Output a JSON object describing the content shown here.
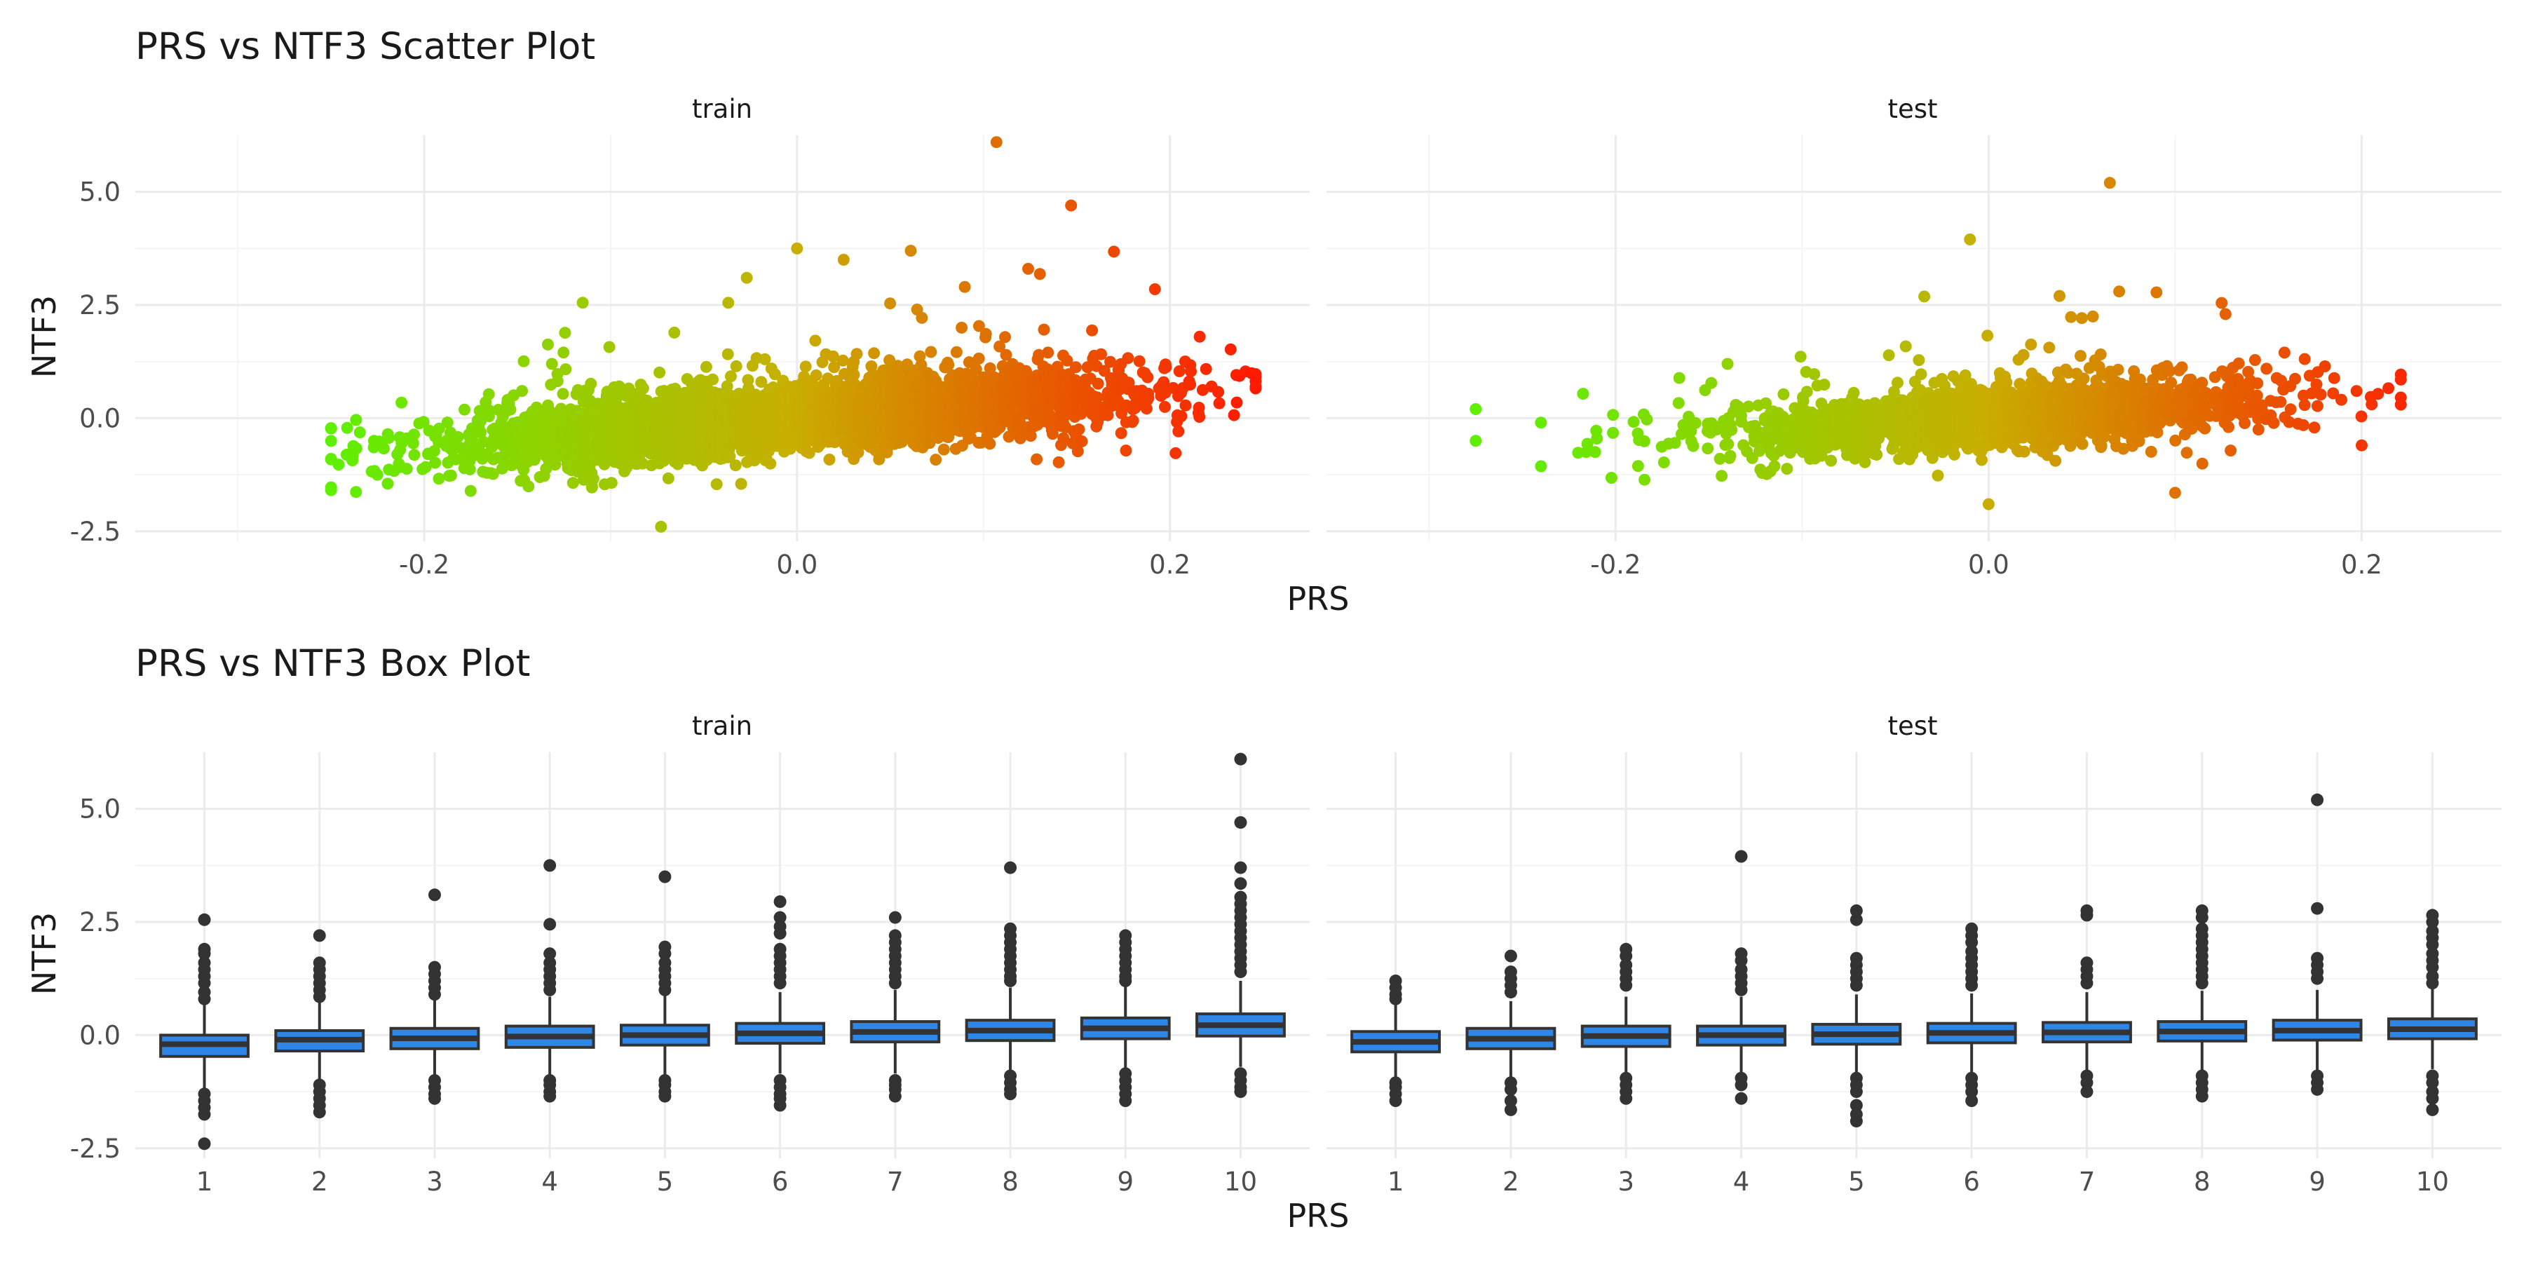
{
  "chart_data": [
    {
      "type": "scatter",
      "title": "PRS vs NTF3 Scatter Plot",
      "xlabel": "PRS",
      "ylabel": "NTF3",
      "facets": [
        "train",
        "test"
      ],
      "x_ticks": [
        "-0.2",
        "0.0",
        "0.2"
      ],
      "y_ticks": [
        "-2.5",
        "0.0",
        "2.5",
        "5.0"
      ],
      "xlim": [
        -0.355,
        0.275
      ],
      "ylim": [
        -2.72,
        6.25
      ],
      "grid": true,
      "color_gradient": [
        "#5ef000",
        "#ff1a00"
      ],
      "color_by": "PRS",
      "series": [
        {
          "facet": "train",
          "n_points": 4200,
          "x_range": [
            -0.25,
            0.246
          ],
          "notable_points": [
            [
              0.107,
              6.1
            ],
            [
              0.147,
              4.7
            ],
            [
              0.0,
              3.75
            ],
            [
              0.061,
              3.7
            ],
            [
              0.17,
              3.68
            ],
            [
              0.025,
              3.5
            ],
            [
              0.124,
              3.3
            ],
            [
              -0.027,
              3.1
            ],
            [
              0.09,
              2.9
            ],
            [
              0.192,
              2.85
            ],
            [
              -0.115,
              2.55
            ],
            [
              0.216,
              1.8
            ],
            [
              0.246,
              0.7
            ],
            [
              -0.073,
              -2.4
            ],
            [
              -0.25,
              -0.9
            ],
            [
              -0.11,
              -1.5
            ]
          ]
        },
        {
          "facet": "test",
          "n_points": 1800,
          "x_range": [
            -0.275,
            0.221
          ],
          "notable_points": [
            [
              0.065,
              5.2
            ],
            [
              -0.01,
              3.95
            ],
            [
              0.07,
              2.8
            ],
            [
              0.038,
              2.7
            ],
            [
              0.09,
              2.78
            ],
            [
              0.127,
              2.3
            ],
            [
              -0.14,
              1.2
            ],
            [
              0.221,
              0.3
            ],
            [
              -0.275,
              0.2
            ],
            [
              -0.275,
              -0.5
            ],
            [
              0.2,
              -0.6
            ],
            [
              0.0,
              -1.9
            ],
            [
              0.1,
              -1.65
            ],
            [
              -0.21,
              -0.45
            ]
          ]
        }
      ]
    },
    {
      "type": "box",
      "title": "PRS vs NTF3 Box Plot",
      "xlabel": "PRS",
      "ylabel": "NTF3",
      "facets": [
        "train",
        "test"
      ],
      "categories": [
        "1",
        "2",
        "3",
        "4",
        "5",
        "6",
        "7",
        "8",
        "9",
        "10"
      ],
      "y_ticks": [
        "-2.5",
        "0.0",
        "2.5",
        "5.0"
      ],
      "ylim": [
        -2.72,
        6.25
      ],
      "grid": true,
      "box_fill": "#2e86e6",
      "box_stroke": "#333333",
      "series": [
        {
          "facet": "train",
          "boxes": [
            {
              "q1": -0.47,
              "median": -0.2,
              "q3": 0.0,
              "whisker_low": -1.2,
              "whisker_high": 0.7,
              "outliers": [
                2.55,
                1.9,
                1.8,
                1.6,
                1.45,
                1.3,
                1.15,
                0.95,
                0.8,
                -1.3,
                -1.45,
                -1.6,
                -1.75,
                -2.4
              ]
            },
            {
              "q1": -0.35,
              "median": -0.1,
              "q3": 0.1,
              "whisker_low": -1.0,
              "whisker_high": 0.75,
              "outliers": [
                2.2,
                1.6,
                1.45,
                1.3,
                1.15,
                1.0,
                0.85,
                -1.1,
                -1.25,
                -1.4,
                -1.55,
                -1.7
              ]
            },
            {
              "q1": -0.3,
              "median": -0.07,
              "q3": 0.15,
              "whisker_low": -0.92,
              "whisker_high": 0.8,
              "outliers": [
                3.1,
                1.5,
                1.35,
                1.2,
                1.05,
                0.9,
                -1.0,
                -1.15,
                -1.3,
                -1.4
              ]
            },
            {
              "q1": -0.27,
              "median": -0.03,
              "q3": 0.2,
              "whisker_low": -0.9,
              "whisker_high": 0.85,
              "outliers": [
                3.75,
                2.45,
                1.8,
                1.6,
                1.45,
                1.3,
                1.15,
                1.0,
                -1.0,
                -1.1,
                -1.25,
                -1.35
              ]
            },
            {
              "q1": -0.22,
              "median": 0.0,
              "q3": 0.22,
              "whisker_low": -0.9,
              "whisker_high": 0.9,
              "outliers": [
                3.5,
                1.95,
                1.8,
                1.6,
                1.45,
                1.3,
                1.15,
                1.0,
                -1.0,
                -1.1,
                -1.25,
                -1.35
              ]
            },
            {
              "q1": -0.18,
              "median": 0.04,
              "q3": 0.26,
              "whisker_low": -0.85,
              "whisker_high": 0.95,
              "outliers": [
                2.95,
                2.6,
                2.4,
                2.25,
                1.9,
                1.75,
                1.6,
                1.45,
                1.3,
                1.15,
                -1.0,
                -1.15,
                -1.3,
                -1.4,
                -1.55
              ]
            },
            {
              "q1": -0.15,
              "median": 0.07,
              "q3": 0.3,
              "whisker_low": -0.85,
              "whisker_high": 1.0,
              "outliers": [
                2.6,
                2.2,
                2.05,
                1.9,
                1.75,
                1.6,
                1.45,
                1.3,
                1.15,
                -1.0,
                -1.1,
                -1.2,
                -1.35
              ]
            },
            {
              "q1": -0.12,
              "median": 0.1,
              "q3": 0.33,
              "whisker_low": -0.8,
              "whisker_high": 1.05,
              "outliers": [
                3.7,
                2.35,
                2.2,
                2.05,
                1.9,
                1.75,
                1.6,
                1.45,
                1.3,
                1.2,
                -0.9,
                -1.05,
                -1.2,
                -1.3
              ]
            },
            {
              "q1": -0.08,
              "median": 0.15,
              "q3": 0.38,
              "whisker_low": -0.75,
              "whisker_high": 1.1,
              "outliers": [
                2.2,
                2.05,
                1.9,
                1.75,
                1.6,
                1.45,
                1.3,
                1.2,
                -0.85,
                -1.0,
                -1.15,
                -1.3,
                -1.45
              ]
            },
            {
              "q1": -0.02,
              "median": 0.22,
              "q3": 0.47,
              "whisker_low": -0.7,
              "whisker_high": 1.2,
              "outliers": [
                6.1,
                4.7,
                3.7,
                3.35,
                3.05,
                2.9,
                2.75,
                2.6,
                2.45,
                2.3,
                2.15,
                2.0,
                1.85,
                1.7,
                1.55,
                1.4,
                -0.85,
                -1.0,
                -1.15,
                -1.25
              ]
            }
          ]
        },
        {
          "facet": "test",
          "boxes": [
            {
              "q1": -0.37,
              "median": -0.15,
              "q3": 0.08,
              "whisker_low": -1.0,
              "whisker_high": 0.7,
              "outliers": [
                1.2,
                1.05,
                0.9,
                0.8,
                -1.05,
                -1.15,
                -1.3,
                -1.45
              ]
            },
            {
              "q1": -0.3,
              "median": -0.08,
              "q3": 0.15,
              "whisker_low": -0.95,
              "whisker_high": 0.75,
              "outliers": [
                1.75,
                1.4,
                1.25,
                1.1,
                0.95,
                -1.05,
                -1.2,
                -1.45,
                -1.65
              ]
            },
            {
              "q1": -0.25,
              "median": -0.02,
              "q3": 0.2,
              "whisker_low": -0.9,
              "whisker_high": 0.85,
              "outliers": [
                1.9,
                1.75,
                1.55,
                1.4,
                1.25,
                1.1,
                -0.95,
                -1.1,
                -1.25,
                -1.4
              ]
            },
            {
              "q1": -0.22,
              "median": 0.0,
              "q3": 0.2,
              "whisker_low": -0.85,
              "whisker_high": 0.85,
              "outliers": [
                3.95,
                1.8,
                1.65,
                1.45,
                1.3,
                1.15,
                1.0,
                -0.95,
                -1.1,
                -1.4
              ]
            },
            {
              "q1": -0.2,
              "median": 0.02,
              "q3": 0.24,
              "whisker_low": -0.88,
              "whisker_high": 0.9,
              "outliers": [
                2.75,
                2.55,
                1.7,
                1.55,
                1.4,
                1.25,
                1.1,
                -0.95,
                -1.1,
                -1.25,
                -1.55,
                -1.75,
                -1.9
              ]
            },
            {
              "q1": -0.17,
              "median": 0.05,
              "q3": 0.26,
              "whisker_low": -0.85,
              "whisker_high": 0.92,
              "outliers": [
                2.35,
                2.2,
                2.05,
                1.85,
                1.7,
                1.55,
                1.4,
                1.25,
                1.1,
                -0.95,
                -1.1,
                -1.25,
                -1.45
              ]
            },
            {
              "q1": -0.15,
              "median": 0.06,
              "q3": 0.28,
              "whisker_low": -0.8,
              "whisker_high": 0.95,
              "outliers": [
                2.75,
                2.65,
                1.6,
                1.45,
                1.3,
                1.15,
                -0.9,
                -1.05,
                -1.25
              ]
            },
            {
              "q1": -0.13,
              "median": 0.08,
              "q3": 0.3,
              "whisker_low": -0.8,
              "whisker_high": 0.98,
              "outliers": [
                2.75,
                2.6,
                2.35,
                2.2,
                2.05,
                1.9,
                1.75,
                1.6,
                1.45,
                1.3,
                1.15,
                -0.9,
                -1.05,
                -1.2,
                -1.35
              ]
            },
            {
              "q1": -0.11,
              "median": 0.1,
              "q3": 0.33,
              "whisker_low": -0.78,
              "whisker_high": 1.0,
              "outliers": [
                5.2,
                2.8,
                1.7,
                1.55,
                1.4,
                1.25,
                -0.9,
                -1.05,
                -1.2
              ]
            },
            {
              "q1": -0.08,
              "median": 0.13,
              "q3": 0.36,
              "whisker_low": -0.75,
              "whisker_high": 1.05,
              "outliers": [
                2.65,
                2.5,
                2.3,
                2.15,
                2.0,
                1.8,
                1.65,
                1.5,
                1.3,
                1.15,
                -0.9,
                -1.05,
                -1.25,
                -1.4,
                -1.65
              ]
            }
          ]
        }
      ]
    }
  ]
}
